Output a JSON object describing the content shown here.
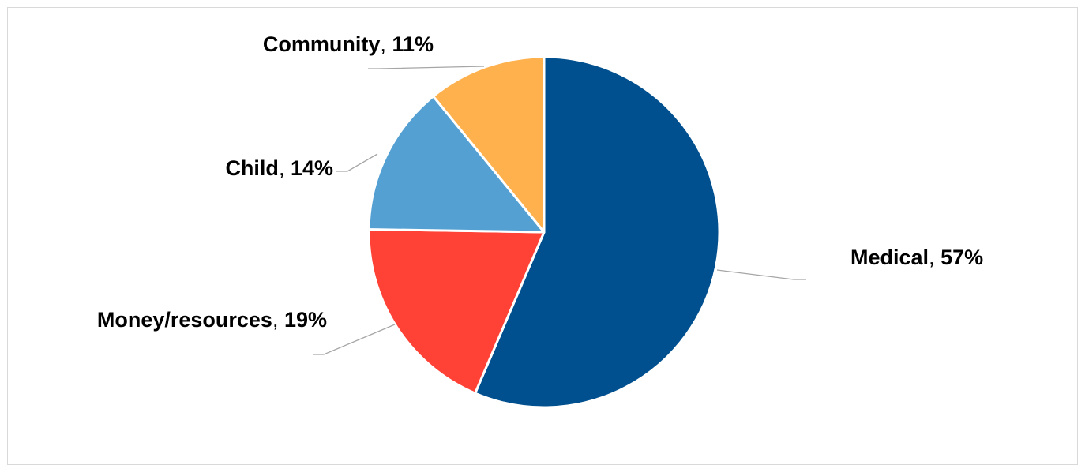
{
  "chart_data": {
    "type": "pie",
    "title": "",
    "start_angle_deg": 0,
    "direction": "clockwise",
    "label_separator": ", ",
    "slices": [
      {
        "label": "Medical",
        "value": 57,
        "value_label": "57%",
        "color": "#00508f"
      },
      {
        "label": "Money/resources",
        "value": 19,
        "value_label": "19%",
        "color": "#ff4136"
      },
      {
        "label": "Child",
        "value": 14,
        "value_label": "14%",
        "color": "#54a0d2"
      },
      {
        "label": "Community",
        "value": 11,
        "value_label": "11%",
        "color": "#ffb14e"
      }
    ],
    "legend": "none",
    "data_labels": "outside-with-leader-lines"
  }
}
